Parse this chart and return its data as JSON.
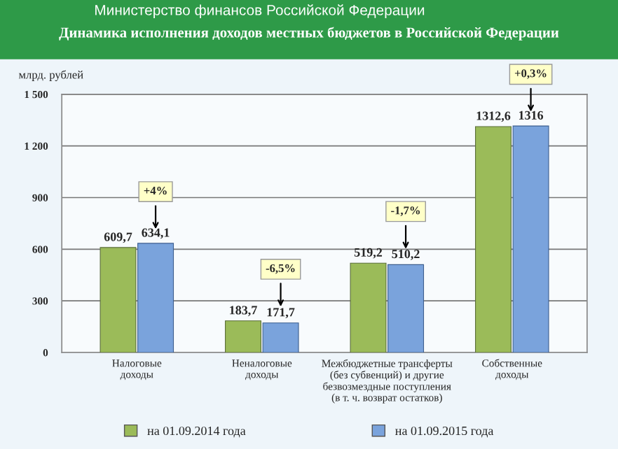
{
  "chart_data": {
    "type": "bar",
    "subtitle": "Министерство финансов Российской Федерации",
    "title": "Динамика исполнения доходов местных бюджетов в Российской Федерации",
    "ylabel": "млрд. рублей",
    "categories": [
      "Налоговые\nдоходы",
      "Неналоговые\nдоходы",
      "Межбюджетные трансферты\n(без субвенций) и другие\nбезвозмездные поступления\n(в т. ч. возврат остатков)",
      "Собственные\nдоходы"
    ],
    "series": [
      {
        "name": "на 01.09.2014 года",
        "color": "#9bbb59",
        "values": [
          609.7,
          183.7,
          519.2,
          1312.6
        ],
        "value_labels": [
          "609,7",
          "183,7",
          "519,2",
          "1312,6"
        ]
      },
      {
        "name": "на 01.09.2015 года",
        "color": "#7aa3dc",
        "values": [
          634.1,
          171.7,
          510.2,
          1316
        ],
        "value_labels": [
          "634,1",
          "171,7",
          "510,2",
          "1316"
        ]
      }
    ],
    "ylim": [
      0,
      1500
    ],
    "yticks": [
      0,
      300,
      600,
      900,
      {
        "value": 1200,
        "label": "1 200"
      },
      {
        "value": 1500,
        "label": "1 500"
      }
    ],
    "grid": "y",
    "legend": "bottom",
    "annotations": [
      "+4%",
      "-6,5%",
      "-1,7%",
      "+0,3%"
    ]
  }
}
